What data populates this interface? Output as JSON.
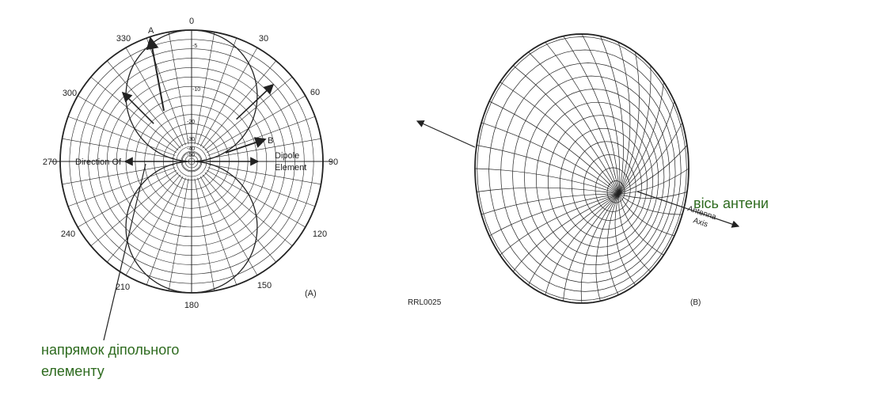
{
  "polar": {
    "angle_labels": [
      "0",
      "30",
      "60",
      "90",
      "120",
      "150",
      "180",
      "210",
      "240",
      "270",
      "300",
      "330"
    ],
    "db_labels": [
      "-5",
      "-10",
      "-20",
      "-30",
      "-40",
      "-50"
    ],
    "marker_a": "A",
    "marker_b": "B",
    "left_text": "Direction Of",
    "right_text_1": "Dipole",
    "right_text_2": "Element",
    "panel_label": "(A)"
  },
  "sphere": {
    "axis_text_1": "Antenna",
    "axis_text_2": "Axis",
    "code": "RRL0025",
    "panel_label": "(B)"
  },
  "annotations": {
    "dipole_direction_line1": "напрямок дiпольного",
    "dipole_direction_line2": "елементу",
    "antenna_axis": "вiсь антени"
  },
  "colors": {
    "annotation_green": "#2e6b1f",
    "ink": "#222222"
  }
}
